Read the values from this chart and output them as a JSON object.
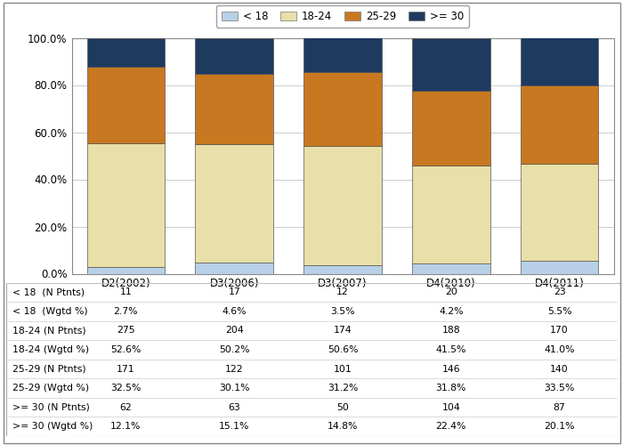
{
  "categories": [
    "D2(2002)",
    "D3(2006)",
    "D3(2007)",
    "D4(2010)",
    "D4(2011)"
  ],
  "series": {
    "< 18": [
      2.7,
      4.6,
      3.5,
      4.2,
      5.5
    ],
    "18-24": [
      52.6,
      50.2,
      50.6,
      41.5,
      41.0
    ],
    "25-29": [
      32.5,
      30.1,
      31.2,
      31.8,
      33.5
    ],
    ">= 30": [
      12.1,
      15.1,
      14.8,
      22.4,
      20.1
    ]
  },
  "colors": {
    "< 18": "#b8d0e8",
    "18-24": "#e8e0a8",
    "25-29": "#c87820",
    ">= 30": "#1e3a5f"
  },
  "legend_labels": [
    "< 18",
    "18-24",
    "25-29",
    ">= 30"
  ],
  "table_rows": [
    [
      "< 18  (N Ptnts)",
      "11",
      "17",
      "12",
      "20",
      "23"
    ],
    [
      "< 18  (Wgtd %)",
      "2.7%",
      "4.6%",
      "3.5%",
      "4.2%",
      "5.5%"
    ],
    [
      "18-24 (N Ptnts)",
      "275",
      "204",
      "174",
      "188",
      "170"
    ],
    [
      "18-24 (Wgtd %)",
      "52.6%",
      "50.2%",
      "50.6%",
      "41.5%",
      "41.0%"
    ],
    [
      "25-29 (N Ptnts)",
      "171",
      "122",
      "101",
      "146",
      "140"
    ],
    [
      "25-29 (Wgtd %)",
      "32.5%",
      "30.1%",
      "31.2%",
      "31.8%",
      "33.5%"
    ],
    [
      ">= 30 (N Ptnts)",
      "62",
      "63",
      "50",
      "104",
      "87"
    ],
    [
      ">= 30 (Wgtd %)",
      "12.1%",
      "15.1%",
      "14.8%",
      "22.4%",
      "20.1%"
    ]
  ],
  "bar_width": 0.72,
  "ylim": [
    0,
    100
  ],
  "yticks": [
    0,
    20,
    40,
    60,
    80,
    100
  ],
  "ytick_labels": [
    "0.0%",
    "20.0%",
    "40.0%",
    "60.0%",
    "80.0%",
    "100.0%"
  ],
  "grid_color": "#cccccc",
  "table_font_size": 7.8,
  "axis_font_size": 8.5,
  "legend_font_size": 8.5
}
